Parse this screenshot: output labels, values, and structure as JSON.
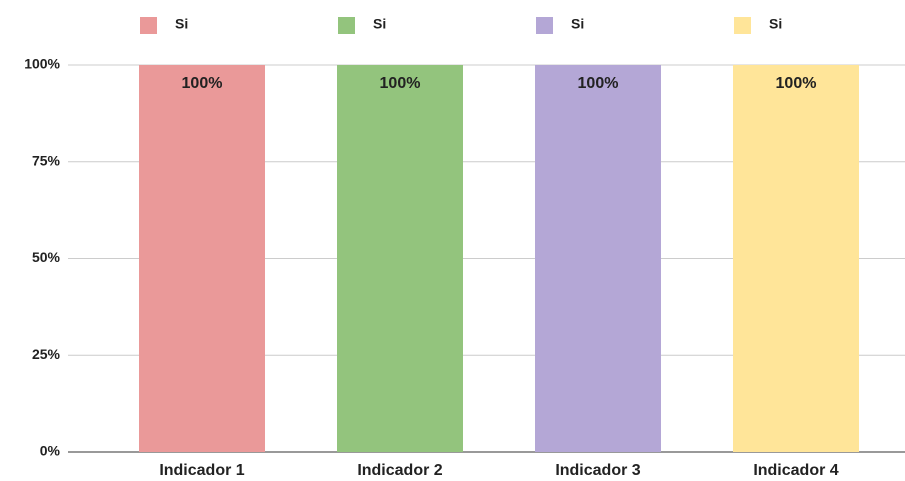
{
  "chart_data": {
    "type": "bar",
    "categories": [
      "Indicador 1",
      "Indicador 2",
      "Indicador 3",
      "Indicador 4"
    ],
    "series": [
      {
        "name": "Si",
        "color": "#ea9999",
        "values": [
          100,
          null,
          null,
          null
        ],
        "value_labels": [
          "100%",
          null,
          null,
          null
        ]
      },
      {
        "name": "Si",
        "color": "#93c47d",
        "values": [
          null,
          100,
          null,
          null
        ],
        "value_labels": [
          null,
          "100%",
          null,
          null
        ]
      },
      {
        "name": "Si",
        "color": "#b4a7d6",
        "values": [
          null,
          null,
          100,
          null
        ],
        "value_labels": [
          null,
          null,
          "100%",
          null
        ]
      },
      {
        "name": "Si",
        "color": "#ffe599",
        "values": [
          null,
          null,
          null,
          100
        ],
        "value_labels": [
          null,
          null,
          null,
          "100%"
        ]
      }
    ],
    "ylim": [
      0,
      100
    ],
    "yticks": [
      {
        "value": 0,
        "label": "0%"
      },
      {
        "value": 25,
        "label": "25%"
      },
      {
        "value": 50,
        "label": "50%"
      },
      {
        "value": 75,
        "label": "75%"
      },
      {
        "value": 100,
        "label": "100%"
      }
    ],
    "grid": true,
    "legend": "top"
  }
}
